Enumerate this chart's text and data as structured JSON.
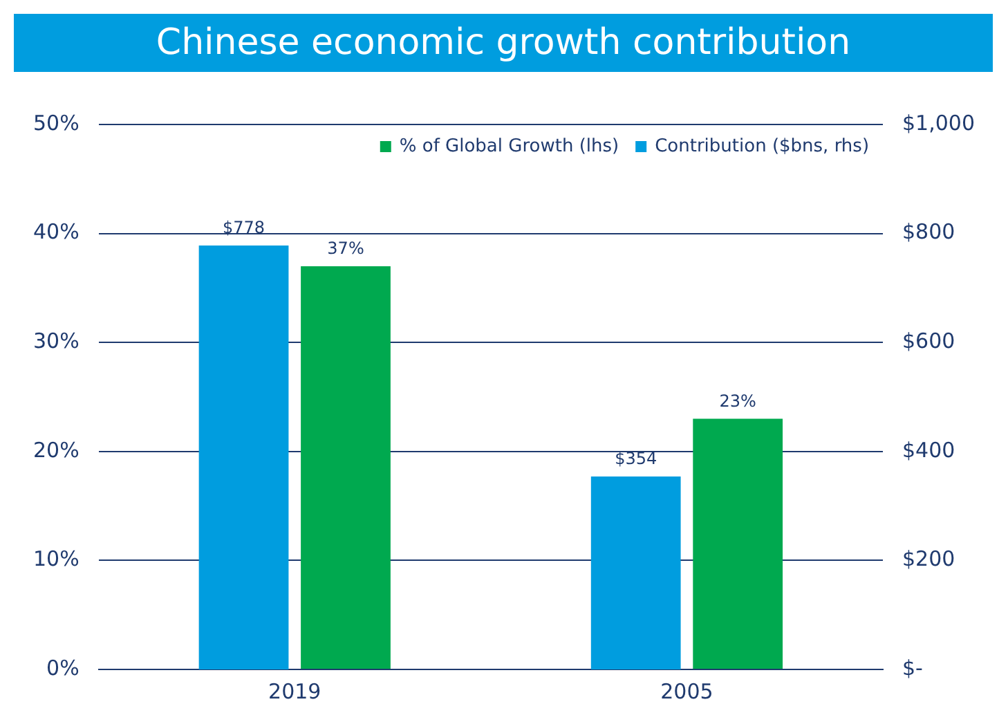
{
  "chart_data": {
    "type": "bar",
    "title": "Chinese economic growth contribution",
    "categories": [
      "2019",
      "2005"
    ],
    "series": [
      {
        "name": "Contribution ($bns, rhs)",
        "color": "#009ddf",
        "values": [
          778,
          354
        ],
        "axis": "y2",
        "value_labels": [
          "$778",
          "$354"
        ]
      },
      {
        "name": "% of Global Growth (lhs)",
        "color": "#00a94f",
        "values": [
          37,
          23
        ],
        "value_labels": [
          "37%",
          "23%"
        ]
      }
    ],
    "ylim": [
      0,
      50
    ],
    "yticks": [
      {
        "value": 0,
        "label": "0%"
      },
      {
        "value": 10,
        "label": "10%"
      },
      {
        "value": 20,
        "label": "20%"
      },
      {
        "value": 30,
        "label": "30%"
      },
      {
        "value": 40,
        "label": "40%"
      },
      {
        "value": 50,
        "label": "50%"
      }
    ],
    "y2lim": [
      0,
      1000
    ],
    "y2ticks": [
      {
        "value": 0,
        "label": "$-"
      },
      {
        "value": 200,
        "label": "$200"
      },
      {
        "value": 400,
        "label": "$400"
      },
      {
        "value": 600,
        "label": "$600"
      },
      {
        "value": 800,
        "label": "$800"
      },
      {
        "value": 1000,
        "label": "$1,000"
      }
    ],
    "grid": "y",
    "legend": "top right"
  }
}
